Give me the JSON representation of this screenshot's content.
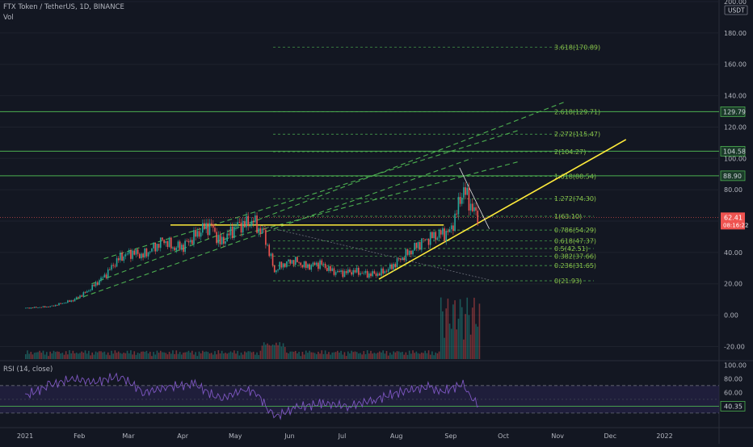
{
  "header": {
    "title": "FTX Token / TetherUS, 1D, BINANCE",
    "vol_label": "Vol"
  },
  "rsi": {
    "label": "RSI (14, close)",
    "ticks": [
      100,
      80,
      60,
      40
    ],
    "current": "40.35",
    "band_upper": 70,
    "band_lower": 30
  },
  "colors": {
    "up": "#26a69a",
    "down": "#ef5350",
    "fib_line": "#4caf50",
    "fib_text": "#8bc34a",
    "trend": "#ffeb3b",
    "rsi_line": "#7e57c2",
    "band_fill": "#2a2450"
  },
  "chart_data": {
    "type": "candlestick",
    "title": "FTX Token / TetherUS, 1D, BINANCE",
    "currency_label": "USDT",
    "y_axis": {
      "min": -28,
      "max": 200,
      "ticks": [
        200,
        180,
        160,
        140,
        120,
        100,
        80,
        60,
        40,
        20,
        0,
        -20
      ]
    },
    "x_axis": {
      "labels": [
        "2021",
        "Feb",
        "Mar",
        "Apr",
        "May",
        "Jun",
        "Jul",
        "Aug",
        "Sep",
        "Oct",
        "Nov",
        "Dec",
        "2022"
      ],
      "start": "2021-01-01",
      "end": "2022-01-04"
    },
    "fib_levels": [
      {
        "label": "3.618(170.89)",
        "value": 170.89
      },
      {
        "label": "2.618(129.71)",
        "value": 129.71
      },
      {
        "label": "2.272(115.47)",
        "value": 115.47
      },
      {
        "label": "2(104.27)",
        "value": 104.27
      },
      {
        "label": "1.618(88.54)",
        "value": 88.54
      },
      {
        "label": "1.272(74.30)",
        "value": 74.3
      },
      {
        "label": "1(63.10)",
        "value": 63.1
      },
      {
        "label": "0.786(54.29)",
        "value": 54.29
      },
      {
        "label": "0.618(47.37)",
        "value": 47.37
      },
      {
        "label": "0.5(42.51)",
        "value": 42.51
      },
      {
        "label": "0.382(37.66)",
        "value": 37.66
      },
      {
        "label": "0.236(31.65)",
        "value": 31.65
      },
      {
        "label": "0(21.93)",
        "value": 21.93
      }
    ],
    "horizontal_levels": [
      {
        "label": "129.79",
        "value": 129.79
      },
      {
        "label": "104.58",
        "value": 104.58
      },
      {
        "label": "88.90",
        "value": 88.9
      }
    ],
    "current_price": {
      "label": "62.41",
      "value": 62.41,
      "countdown": "08:16:22"
    },
    "price_path": [
      [
        "2021-01-01",
        4.5
      ],
      [
        "2021-01-15",
        5.5
      ],
      [
        "2021-01-28",
        9.5
      ],
      [
        "2021-02-05",
        15
      ],
      [
        "2021-02-10",
        20
      ],
      [
        "2021-02-15",
        25
      ],
      [
        "2021-02-20",
        32
      ],
      [
        "2021-02-24",
        37
      ],
      [
        "2021-03-03",
        40
      ],
      [
        "2021-03-09",
        38
      ],
      [
        "2021-03-15",
        43
      ],
      [
        "2021-03-21",
        48
      ],
      [
        "2021-03-26",
        43
      ],
      [
        "2021-04-01",
        44
      ],
      [
        "2021-04-07",
        50
      ],
      [
        "2021-04-13",
        56
      ],
      [
        "2021-04-17",
        57
      ],
      [
        "2021-04-22",
        46
      ],
      [
        "2021-04-26",
        50
      ],
      [
        "2021-05-01",
        57
      ],
      [
        "2021-05-06",
        58
      ],
      [
        "2021-05-11",
        60
      ],
      [
        "2021-05-14",
        55
      ],
      [
        "2021-05-17",
        52
      ],
      [
        "2021-05-20",
        40
      ],
      [
        "2021-05-23",
        28
      ],
      [
        "2021-05-27",
        32
      ],
      [
        "2021-06-03",
        35
      ],
      [
        "2021-06-10",
        31
      ],
      [
        "2021-06-18",
        33
      ],
      [
        "2021-06-25",
        28
      ],
      [
        "2021-07-01",
        27
      ],
      [
        "2021-07-08",
        28
      ],
      [
        "2021-07-15",
        26
      ],
      [
        "2021-07-22",
        26.5
      ],
      [
        "2021-07-28",
        30
      ],
      [
        "2021-08-03",
        36
      ],
      [
        "2021-08-09",
        41
      ],
      [
        "2021-08-15",
        47
      ],
      [
        "2021-08-21",
        50
      ],
      [
        "2021-08-26",
        52
      ],
      [
        "2021-08-31",
        53
      ],
      [
        "2021-09-03",
        62
      ],
      [
        "2021-09-07",
        78
      ],
      [
        "2021-09-08",
        80
      ],
      [
        "2021-09-10",
        75
      ],
      [
        "2021-09-13",
        68
      ],
      [
        "2021-09-15",
        64
      ],
      [
        "2021-09-17",
        62.4
      ]
    ],
    "volume": [
      [
        "2021-08-31",
        10
      ],
      [
        "2021-09-03",
        14
      ],
      [
        "2021-09-06",
        24
      ],
      [
        "2021-09-08",
        28
      ],
      [
        "2021-09-10",
        18
      ],
      [
        "2021-09-13",
        12
      ],
      [
        "2021-09-15",
        7
      ]
    ],
    "rsi_path": [
      [
        "2021-01-01",
        55
      ],
      [
        "2021-01-15",
        70
      ],
      [
        "2021-01-28",
        80
      ],
      [
        "2021-02-10",
        75
      ],
      [
        "2021-02-24",
        84
      ],
      [
        "2021-03-10",
        60
      ],
      [
        "2021-03-24",
        68
      ],
      [
        "2021-04-08",
        72
      ],
      [
        "2021-04-22",
        50
      ],
      [
        "2021-05-06",
        64
      ],
      [
        "2021-05-13",
        60
      ],
      [
        "2021-05-20",
        35
      ],
      [
        "2021-05-24",
        25
      ],
      [
        "2021-06-05",
        38
      ],
      [
        "2021-06-20",
        44
      ],
      [
        "2021-07-05",
        40
      ],
      [
        "2021-07-20",
        50
      ],
      [
        "2021-08-05",
        62
      ],
      [
        "2021-08-20",
        68
      ],
      [
        "2021-08-26",
        60
      ],
      [
        "2021-09-08",
        72
      ],
      [
        "2021-09-12",
        55
      ],
      [
        "2021-09-17",
        40.35
      ]
    ]
  }
}
